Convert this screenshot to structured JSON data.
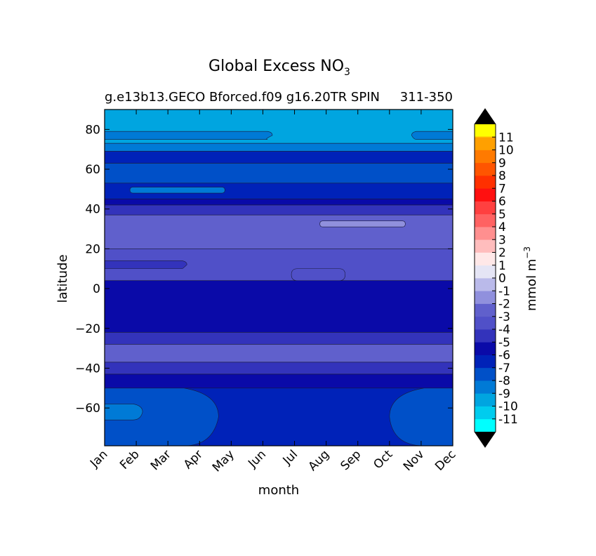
{
  "chart_data": {
    "type": "contourf",
    "title_main": "Global Excess NO",
    "title_sub": "3",
    "subtitle_left": "g.e13b13.GECO Bforced.f09 g16.20TR SPIN",
    "subtitle_right": "311-350",
    "xlabel": "month",
    "ylabel": "latitude",
    "x": [
      "Jan",
      "Feb",
      "Mar",
      "Apr",
      "May",
      "Jun",
      "Jul",
      "Aug",
      "Sep",
      "Oct",
      "Nov",
      "Dec"
    ],
    "yticks": [
      80,
      60,
      40,
      20,
      0,
      -20,
      -40,
      -60
    ],
    "ytick_labels": [
      "80",
      "60",
      "40",
      "20",
      "0",
      "−20",
      "−40",
      "−60"
    ],
    "ylim": [
      -79,
      90
    ],
    "colorbar": {
      "label": "mmol m",
      "label_sup": "−3",
      "levels": [
        -12,
        -11,
        -10,
        -9,
        -8,
        -7,
        -6,
        -5,
        -4,
        -3,
        -2,
        -1,
        0,
        1,
        2,
        3,
        4,
        5,
        6,
        7,
        8,
        9,
        10,
        11,
        12
      ],
      "tick_labels": [
        "11",
        "10",
        "9",
        "8",
        "7",
        "6",
        "5",
        "4",
        "3",
        "2",
        "1",
        "0",
        "-1",
        "-2",
        "-3",
        "-4",
        "-5",
        "-6",
        "-7",
        "-8",
        "-9",
        "-10",
        "-11"
      ],
      "colors": [
        "#00ffff",
        "#00ccee",
        "#00a5e0",
        "#007ad6",
        "#0050c8",
        "#0022b8",
        "#0a0aa8",
        "#3333bb",
        "#5050c8",
        "#6060cc",
        "#9090dd",
        "#babaea",
        "#e5e5f5",
        "#ffe8e8",
        "#ffbdbd",
        "#ff8f8f",
        "#ff6262",
        "#ff4040",
        "#ff1010",
        "#ff3000",
        "#ff5500",
        "#ff7a00",
        "#ffa000",
        "#ffcc00"
      ],
      "top_extend_color": "#000000",
      "bottom_extend_color": "#000000",
      "top_cap_color": "#ffff00"
    },
    "bands": [
      {
        "lat_top": 90,
        "lat_bottom": 73,
        "value": -10
      },
      {
        "lat_top": 73,
        "lat_bottom": 69,
        "value": -9
      },
      {
        "lat_top": 69,
        "lat_bottom": 63,
        "value": -7
      },
      {
        "lat_top": 63,
        "lat_bottom": 53,
        "value": -8
      },
      {
        "lat_top": 53,
        "lat_bottom": 45,
        "value": -7
      },
      {
        "lat_top": 45,
        "lat_bottom": 42,
        "value": -6
      },
      {
        "lat_top": 42,
        "lat_bottom": 37,
        "value": -5
      },
      {
        "lat_top": 37,
        "lat_bottom": 20,
        "value": -3
      },
      {
        "lat_top": 20,
        "lat_bottom": 4,
        "value": -4
      },
      {
        "lat_top": 4,
        "lat_bottom": -22,
        "value": -6
      },
      {
        "lat_top": -22,
        "lat_bottom": -28,
        "value": -5
      },
      {
        "lat_top": -28,
        "lat_bottom": -37,
        "value": -3
      },
      {
        "lat_top": -37,
        "lat_bottom": -43,
        "value": -5
      },
      {
        "lat_top": -43,
        "lat_bottom": -50,
        "value": -6
      },
      {
        "lat_top": -50,
        "lat_bottom": -79,
        "value": -7
      }
    ],
    "features": [
      {
        "name": "arctic-feature-left",
        "value": -9,
        "month_from": 0,
        "month_to": 5.3,
        "lat_top": 79,
        "lat_bottom": 75
      },
      {
        "name": "arctic-feature-right",
        "value": -9,
        "month_from": 9.7,
        "month_to": 11,
        "lat_top": 79,
        "lat_bottom": 75
      },
      {
        "name": "feature-50n",
        "value": -9,
        "month_from": 0.8,
        "month_to": 3.8,
        "lat_top": 51,
        "lat_bottom": 48
      },
      {
        "name": "feature-32n",
        "value": -2,
        "month_from": 6.8,
        "month_to": 9.5,
        "lat_top": 34,
        "lat_bottom": 31
      },
      {
        "name": "feature-12n-left",
        "value": -5,
        "month_from": 0,
        "month_to": 2.6,
        "lat_top": 14,
        "lat_bottom": 10
      },
      {
        "name": "feature-bump-2n",
        "value": -4,
        "month_from": 5.9,
        "month_to": 7.6,
        "lat_top": 10,
        "lat_bottom": 4
      },
      {
        "name": "south-left-region",
        "value": -8,
        "month_from": 0,
        "month_to": 3.6,
        "lat_top": -50,
        "lat_bottom": -79
      },
      {
        "name": "south-right-region",
        "value": -8,
        "month_from": 9.0,
        "month_to": 11,
        "lat_top": -50,
        "lat_bottom": -79
      },
      {
        "name": "south-left-blob",
        "value": -9,
        "month_from": 0,
        "month_to": 1.2,
        "lat_top": -58,
        "lat_bottom": -66
      }
    ]
  }
}
